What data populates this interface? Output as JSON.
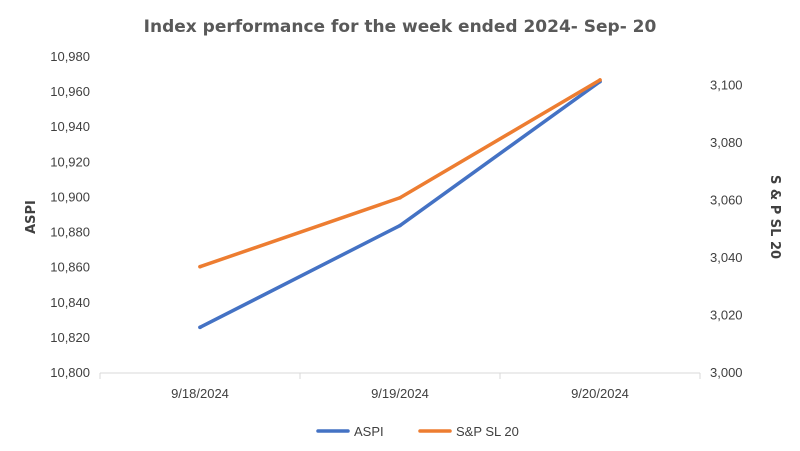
{
  "chart_data": {
    "type": "line",
    "title": "Index performance for the week ended 2024- Sep- 20",
    "categories": [
      "9/18/2024",
      "9/19/2024",
      "9/20/2024"
    ],
    "y_left": {
      "label": "ASPI",
      "range": [
        10800,
        10980
      ],
      "ticks": [
        "10,800",
        "10,820",
        "10,840",
        "10,860",
        "10,880",
        "10,900",
        "10,920",
        "10,940",
        "10,960",
        "10,980"
      ]
    },
    "y_right": {
      "label": "S & P SL 20",
      "range": [
        3000,
        3110
      ],
      "ticks": [
        "3,000",
        "3,020",
        "3,040",
        "3,060",
        "3,080",
        "3,100"
      ]
    },
    "series": [
      {
        "name": "ASPI",
        "axis": "left",
        "color": "#4472C4",
        "values": [
          10826,
          10884,
          10966
        ]
      },
      {
        "name": "S&P SL 20",
        "axis": "right",
        "color": "#ED7D31",
        "values": [
          3037,
          3061,
          3102
        ]
      }
    ],
    "legend": "bottom",
    "grid": false
  }
}
